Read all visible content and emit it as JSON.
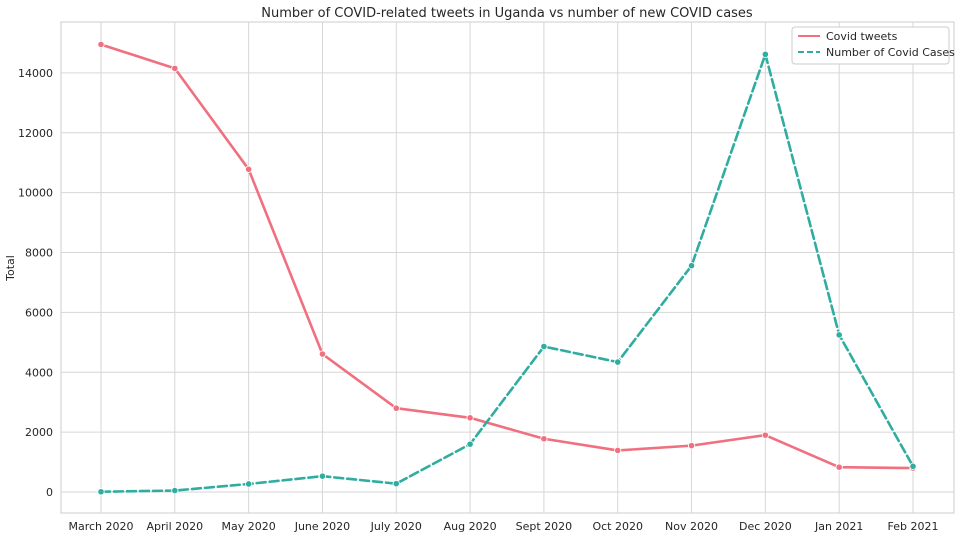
{
  "chart_data": {
    "type": "line",
    "title": "Number of COVID-related tweets in Uganda vs number of new COVID cases",
    "xlabel": "",
    "ylabel": "Total",
    "categories": [
      "March 2020",
      "April 2020",
      "May 2020",
      "June 2020",
      "July 2020",
      "Aug 2020",
      "Sept 2020",
      "Oct 2020",
      "Nov 2020",
      "Dec 2020",
      "Jan 2021",
      "Feb 2021"
    ],
    "series": [
      {
        "name": "Covid tweets",
        "color": "#f0707f",
        "style": "solid",
        "values": [
          14950,
          14150,
          10780,
          4610,
          2800,
          2480,
          1780,
          1390,
          1550,
          1900,
          830,
          800
        ]
      },
      {
        "name": "Number of Covid Cases",
        "color": "#2fada0",
        "style": "dashed",
        "values": [
          10,
          50,
          270,
          530,
          280,
          1600,
          4860,
          4340,
          7560,
          14620,
          5250,
          860
        ]
      }
    ],
    "yticks": [
      0,
      2000,
      4000,
      6000,
      8000,
      10000,
      12000,
      14000
    ],
    "ylim": [
      -700,
      15700
    ],
    "grid": true,
    "legend_position": "top-right"
  }
}
